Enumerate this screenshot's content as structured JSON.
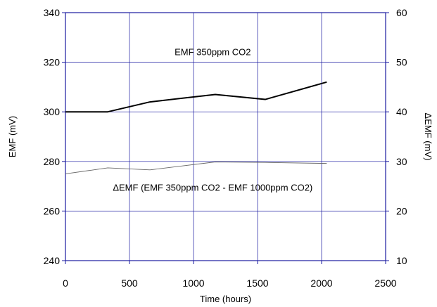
{
  "chart_data": {
    "type": "line",
    "title": "",
    "xlabel": "Time (hours)",
    "ylabel": "EMF (mV)",
    "y2label": "ΔEMF (mV)",
    "xlim": [
      0,
      2500
    ],
    "ylim": [
      240,
      340
    ],
    "y2lim": [
      10,
      60
    ],
    "x_ticks": [
      "0",
      "500",
      "1000",
      "1500",
      "2000",
      "2500"
    ],
    "y_ticks": [
      "240",
      "260",
      "280",
      "300",
      "320",
      "340"
    ],
    "y2_ticks": [
      "10",
      "20",
      "30",
      "40",
      "50",
      "60"
    ],
    "grid": true,
    "axis_color": "#1a1aa0",
    "series": [
      {
        "label": "EMF 350ppm CO2",
        "axis": "left",
        "color": "#000000",
        "x": [
          0,
          330,
          660,
          1170,
          1560,
          2040
        ],
        "y": [
          300,
          300,
          304,
          307,
          305,
          312
        ]
      },
      {
        "label": "ΔEMF (EMF 350ppm CO2 - EMF 1000ppm CO2)",
        "axis": "right",
        "color": "#666666",
        "x": [
          0,
          330,
          660,
          1170,
          1560,
          2040
        ],
        "y": [
          27.5,
          28.7,
          28.3,
          29.9,
          29.8,
          29.6
        ]
      }
    ]
  }
}
